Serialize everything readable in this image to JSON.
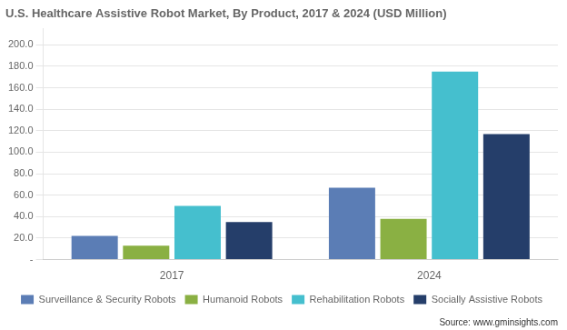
{
  "chart_data": {
    "type": "bar",
    "title": "U.S. Healthcare Assistive Robot Market, By Product, 2017 & 2024 (USD Million)",
    "categories": [
      "2017",
      "2024"
    ],
    "series": [
      {
        "name": "Surveillance & Security Robots",
        "color": "#5b7db5",
        "values": [
          22.0,
          67.0
        ]
      },
      {
        "name": "Humanoid Robots",
        "color": "#8ab043",
        "values": [
          13.0,
          38.0
        ]
      },
      {
        "name": "Rehabilitation Robots",
        "color": "#45bfce",
        "values": [
          50.0,
          175.0
        ]
      },
      {
        "name": "Socially Assistive Robots",
        "color": "#253e6a",
        "values": [
          35.0,
          117.0
        ]
      }
    ],
    "ylim": [
      0,
      215
    ],
    "yticks": [
      {
        "value": 0,
        "label": "-"
      },
      {
        "value": 20,
        "label": "20.0"
      },
      {
        "value": 40,
        "label": "40.0"
      },
      {
        "value": 60,
        "label": "60.0"
      },
      {
        "value": 80,
        "label": "80.0"
      },
      {
        "value": 100,
        "label": "100.0"
      },
      {
        "value": 120,
        "label": "120.0"
      },
      {
        "value": 140,
        "label": "140.0"
      },
      {
        "value": 160,
        "label": "160.0"
      },
      {
        "value": 180,
        "label": "180.0"
      },
      {
        "value": 200,
        "label": "200.0"
      }
    ],
    "grid": true,
    "legend": "bottom",
    "annotations": [
      "Source: www.gminsights.com"
    ]
  }
}
